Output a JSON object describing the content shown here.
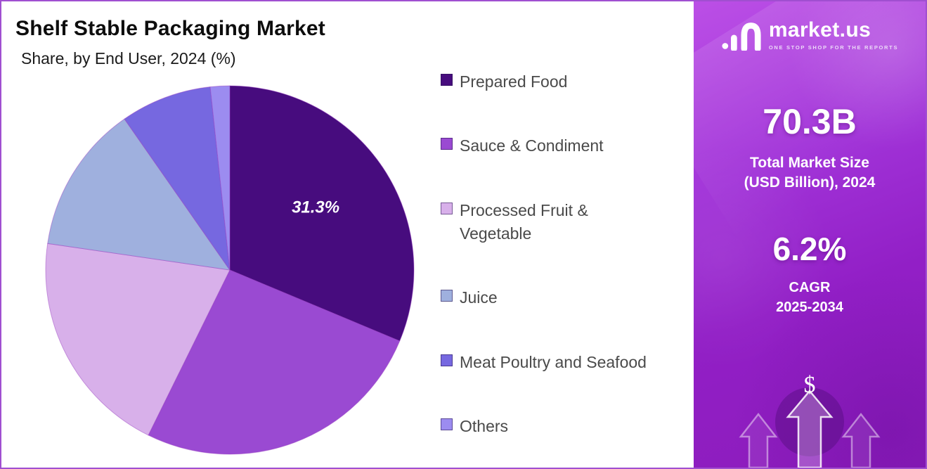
{
  "header": {
    "title": "Shelf Stable Packaging Market",
    "subtitle": "Share, by End User, 2024 (%)"
  },
  "chart_data": {
    "type": "pie",
    "title": "Shelf Stable Packaging Market",
    "subtitle": "Share, by End User, 2024 (%)",
    "unit": "%",
    "legend_position": "right",
    "start_angle_deg": 0,
    "direction": "clockwise",
    "slices": [
      {
        "label": "Prepared Food",
        "value": 31.3,
        "color": "#470c7e",
        "show_label": true,
        "label_text": "31.3%"
      },
      {
        "label": "Sauce & Condiment",
        "value": 26.0,
        "color": "#9a4ad2",
        "show_label": false
      },
      {
        "label": "Processed Fruit & Vegetable",
        "value": 20.0,
        "color": "#d8b0ea",
        "show_label": false
      },
      {
        "label": "Juice",
        "value": 13.0,
        "color": "#9fb0de",
        "show_label": false
      },
      {
        "label": "Meat Poultry and Seafood",
        "value": 8.0,
        "color": "#7668e0",
        "show_label": false
      },
      {
        "label": "Others",
        "value": 1.7,
        "color": "#9c8cf0",
        "show_label": false
      }
    ]
  },
  "sidebar": {
    "brand": {
      "name": "market.us",
      "tagline": "ONE STOP SHOP FOR THE REPORTS"
    },
    "market_size_value": "70.3B",
    "market_size_label_line1": "Total Market Size",
    "market_size_label_line2": "(USD Billion), 2024",
    "cagr_value": "6.2%",
    "cagr_label_line1": "CAGR",
    "cagr_label_line2": "2025-2034",
    "dollar_symbol": "$"
  }
}
